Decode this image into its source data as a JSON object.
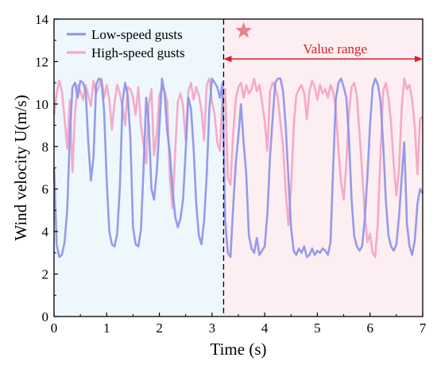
{
  "chart_data": {
    "type": "line",
    "xlabel": "Time (s)",
    "ylabel": "Wind velocity U(m/s)",
    "xlim": [
      0,
      7
    ],
    "ylim": [
      0,
      14
    ],
    "xticks": [
      "0",
      "1",
      "2",
      "3",
      "4",
      "5",
      "6",
      "7"
    ],
    "yticks": [
      "0",
      "2",
      "4",
      "6",
      "8",
      "10",
      "12",
      "14"
    ],
    "grid": false,
    "legend_position": "top-left",
    "regions": [
      {
        "x_start": 0,
        "x_end": 3.22,
        "color": "#eef7fc"
      },
      {
        "x_start": 3.22,
        "x_end": 7,
        "color": "#fdeef2"
      }
    ],
    "divider_x": 3.22,
    "annotation": {
      "text": "Value range",
      "x_start": 3.22,
      "x_end": 7,
      "y": 12.5,
      "color": "#d8202a"
    },
    "marker": {
      "x": 3.6,
      "y": 13.45,
      "color": "#e8828f"
    },
    "series": [
      {
        "name": "Low-speed gusts",
        "color": "#8c93e8",
        "x": [
          0,
          0.05,
          0.1,
          0.15,
          0.2,
          0.25,
          0.3,
          0.35,
          0.4,
          0.45,
          0.5,
          0.55,
          0.6,
          0.65,
          0.7,
          0.75,
          0.8,
          0.85,
          0.9,
          0.95,
          1.0,
          1.05,
          1.1,
          1.15,
          1.2,
          1.25,
          1.3,
          1.35,
          1.4,
          1.45,
          1.5,
          1.55,
          1.6,
          1.65,
          1.7,
          1.75,
          1.8,
          1.85,
          1.9,
          1.95,
          2.0,
          2.05,
          2.1,
          2.15,
          2.2,
          2.25,
          2.3,
          2.35,
          2.4,
          2.45,
          2.5,
          2.55,
          2.6,
          2.65,
          2.7,
          2.75,
          2.8,
          2.85,
          2.9,
          2.95,
          3.0,
          3.05,
          3.1,
          3.15,
          3.2,
          3.25,
          3.3,
          3.35,
          3.4,
          3.45,
          3.5,
          3.55,
          3.6,
          3.65,
          3.7,
          3.75,
          3.8,
          3.85,
          3.9,
          3.95,
          4.0,
          4.05,
          4.1,
          4.15,
          4.2,
          4.25,
          4.3,
          4.35,
          4.4,
          4.45,
          4.5,
          4.55,
          4.6,
          4.65,
          4.7,
          4.75,
          4.8,
          4.85,
          4.9,
          4.95,
          5.0,
          5.05,
          5.1,
          5.15,
          5.2,
          5.25,
          5.3,
          5.35,
          5.4,
          5.45,
          5.5,
          5.55,
          5.6,
          5.65,
          5.7,
          5.75,
          5.8,
          5.85,
          5.9,
          5.95,
          6.0,
          6.05,
          6.1,
          6.15,
          6.2,
          6.25,
          6.3,
          6.35,
          6.4,
          6.45,
          6.5,
          6.55,
          6.6,
          6.65,
          6.7,
          6.75,
          6.8,
          6.85,
          6.9,
          6.95,
          7.0
        ],
        "y": [
          7.0,
          3.4,
          2.8,
          2.9,
          3.5,
          5.0,
          8.5,
          10.8,
          11.0,
          10.3,
          11.1,
          11.0,
          10.6,
          8.2,
          6.4,
          7.5,
          10.9,
          11.2,
          11.1,
          9.7,
          6.4,
          4.0,
          3.4,
          3.3,
          3.9,
          6.1,
          10.1,
          11.0,
          10.4,
          8.4,
          4.2,
          3.4,
          3.3,
          4.1,
          7.0,
          10.3,
          9.0,
          6.0,
          5.5,
          6.8,
          8.9,
          11.2,
          10.5,
          8.7,
          7.7,
          6.0,
          4.7,
          4.2,
          4.6,
          5.5,
          7.8,
          10.3,
          9.8,
          7.9,
          5.3,
          3.8,
          3.4,
          4.5,
          6.7,
          9.8,
          11.2,
          11.0,
          10.8,
          10.3,
          11.0,
          4.5,
          3.0,
          2.8,
          5.1,
          7.2,
          8.5,
          10.0,
          8.2,
          6.7,
          3.8,
          3.2,
          3.0,
          3.7,
          2.9,
          3.1,
          3.3,
          4.8,
          7.5,
          9.3,
          11.0,
          11.2,
          11.2,
          10.6,
          8.9,
          6.5,
          4.2,
          3.1,
          2.9,
          3.2,
          3.0,
          3.3,
          2.8,
          2.9,
          3.2,
          2.9,
          3.1,
          3.0,
          3.2,
          3.1,
          2.9,
          3.5,
          7.0,
          10.2,
          11.0,
          11.2,
          10.8,
          10.3,
          8.4,
          5.5,
          3.8,
          3.3,
          3.1,
          3.3,
          4.6,
          6.6,
          9.0,
          10.8,
          11.2,
          10.9,
          10.1,
          8.1,
          5.5,
          3.8,
          3.3,
          3.1,
          3.4,
          4.7,
          6.5,
          8.2,
          4.4,
          3.3,
          2.9,
          3.6,
          5.3,
          6.0,
          5.8
        ]
      },
      {
        "name": "High-speed gusts",
        "color": "#f5a3c4",
        "x": [
          0,
          0.05,
          0.1,
          0.15,
          0.2,
          0.25,
          0.3,
          0.35,
          0.4,
          0.45,
          0.5,
          0.55,
          0.6,
          0.65,
          0.7,
          0.75,
          0.8,
          0.85,
          0.9,
          0.95,
          1.0,
          1.05,
          1.1,
          1.15,
          1.2,
          1.25,
          1.3,
          1.35,
          1.4,
          1.45,
          1.5,
          1.55,
          1.6,
          1.65,
          1.7,
          1.75,
          1.8,
          1.85,
          1.9,
          1.95,
          2.0,
          2.05,
          2.1,
          2.15,
          2.2,
          2.25,
          2.3,
          2.35,
          2.4,
          2.45,
          2.5,
          2.55,
          2.6,
          2.65,
          2.7,
          2.75,
          2.8,
          2.85,
          2.9,
          2.95,
          3.0,
          3.05,
          3.1,
          3.15,
          3.2,
          3.25,
          3.3,
          3.35,
          3.4,
          3.45,
          3.5,
          3.55,
          3.6,
          3.65,
          3.7,
          3.75,
          3.8,
          3.85,
          3.9,
          3.95,
          4.0,
          4.05,
          4.1,
          4.15,
          4.2,
          4.25,
          4.3,
          4.35,
          4.4,
          4.45,
          4.5,
          4.55,
          4.6,
          4.65,
          4.7,
          4.75,
          4.8,
          4.85,
          4.9,
          4.95,
          5.0,
          5.05,
          5.1,
          5.15,
          5.2,
          5.25,
          5.3,
          5.35,
          5.4,
          5.45,
          5.5,
          5.55,
          5.6,
          5.65,
          5.7,
          5.75,
          5.8,
          5.85,
          5.9,
          5.95,
          6.0,
          6.05,
          6.1,
          6.15,
          6.2,
          6.25,
          6.3,
          6.35,
          6.4,
          6.45,
          6.5,
          6.55,
          6.6,
          6.65,
          6.7,
          6.75,
          6.8,
          6.85,
          6.9,
          6.95,
          7.0
        ],
        "y": [
          9.5,
          10.5,
          11.1,
          10.6,
          9.3,
          7.9,
          10.2,
          6.8,
          9.6,
          10.9,
          10.6,
          10.2,
          10.9,
          10.4,
          9.9,
          11.1,
          10.5,
          10.8,
          11.2,
          10.3,
          10.9,
          10.2,
          8.8,
          10.1,
          10.9,
          10.5,
          9.8,
          9.0,
          10.8,
          10.7,
          10.3,
          9.5,
          10.8,
          9.0,
          8.1,
          7.2,
          10.0,
          10.7,
          7.6,
          8.6,
          10.4,
          10.8,
          10.6,
          10.1,
          6.5,
          5.1,
          7.8,
          10.1,
          10.5,
          9.9,
          8.3,
          10.6,
          11.0,
          10.2,
          10.8,
          10.4,
          9.7,
          8.3,
          10.9,
          11.2,
          10.1,
          9.5,
          8.2,
          7.8,
          10.5,
          10.7,
          6.5,
          6.2,
          8.6,
          10.2,
          10.8,
          11.0,
          10.3,
          10.9,
          10.5,
          10.7,
          11.2,
          10.6,
          10.9,
          10.1,
          9.2,
          7.8,
          10.6,
          11.0,
          10.8,
          10.3,
          9.1,
          8.0,
          5.8,
          4.3,
          6.0,
          8.9,
          10.4,
          10.7,
          10.9,
          10.5,
          9.3,
          10.6,
          11.1,
          10.8,
          10.2,
          10.9,
          10.5,
          10.7,
          10.3,
          10.9,
          10.6,
          9.8,
          7.9,
          6.3,
          5.5,
          7.2,
          9.6,
          10.8,
          11.0,
          10.4,
          8.6,
          6.8,
          4.8,
          3.5,
          3.9,
          3.0,
          2.8,
          4.5,
          7.8,
          10.6,
          11.0,
          10.3,
          9.1,
          7.2,
          5.7,
          6.9,
          9.8,
          11.2,
          10.7,
          10.9,
          10.2,
          8.9,
          6.7,
          9.3,
          9.4
        ]
      }
    ]
  }
}
